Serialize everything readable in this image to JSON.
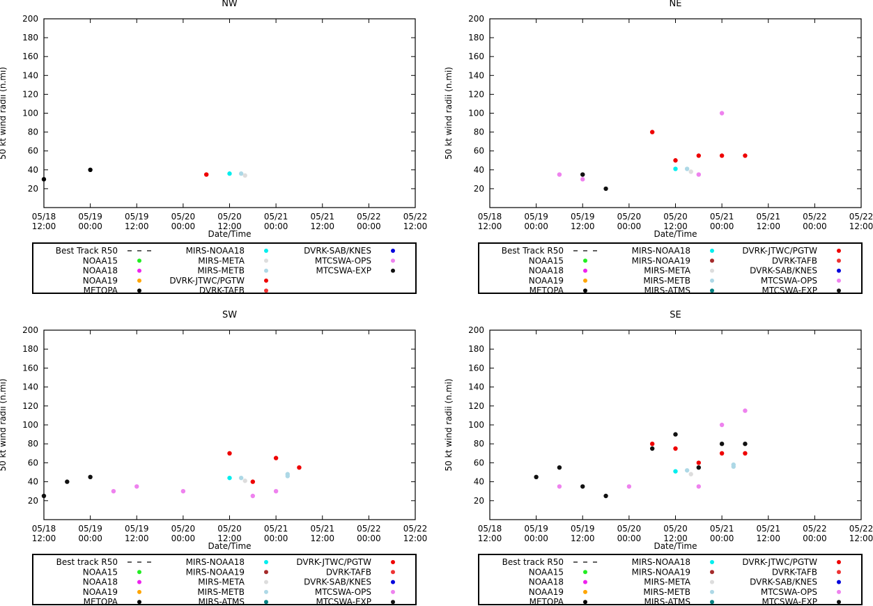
{
  "x_ticks": [
    {
      "t": 0,
      "line1": "05/18",
      "line2": "12:00"
    },
    {
      "t": 12,
      "line1": "05/19",
      "line2": "00:00"
    },
    {
      "t": 24,
      "line1": "05/19",
      "line2": "12:00"
    },
    {
      "t": 36,
      "line1": "05/20",
      "line2": "00:00"
    },
    {
      "t": 48,
      "line1": "05/20",
      "line2": "12:00"
    },
    {
      "t": 60,
      "line1": "05/21",
      "line2": "00:00"
    },
    {
      "t": 72,
      "line1": "05/21",
      "line2": "12:00"
    },
    {
      "t": 84,
      "line1": "05/22",
      "line2": "00:00"
    },
    {
      "t": 96,
      "line1": "05/22",
      "line2": "12:00"
    }
  ],
  "chart_data": [
    {
      "type": "scatter",
      "title": "NW",
      "xlabel": "Date/Time",
      "ylabel": "50 kt wind radii (n.mi)",
      "xlim_hours_from_0518_1200": [
        0,
        96
      ],
      "ylim": [
        0,
        200
      ],
      "y_ticks": [
        20,
        40,
        60,
        80,
        100,
        120,
        140,
        160,
        180,
        200
      ],
      "legend": [
        {
          "label": "Best Track R50",
          "color": "#000000",
          "kind": "dash"
        },
        {
          "label": "NOAA15",
          "color": "#22ee22",
          "kind": "dot"
        },
        {
          "label": "NOAA18",
          "color": "#ee22ee",
          "kind": "dot"
        },
        {
          "label": "NOAA19",
          "color": "#ffa500",
          "kind": "dot"
        },
        {
          "label": "METOPA",
          "color": "#000000",
          "kind": "dot"
        },
        {
          "label": "MIRS-NOAA18",
          "color": "#00eeee",
          "kind": "dot"
        },
        {
          "label": "MIRS-META",
          "color": "#dddddd",
          "kind": "dot"
        },
        {
          "label": "MIRS-METB",
          "color": "#add8e6",
          "kind": "dot"
        },
        {
          "label": "DVRK-JTWC/PGTW",
          "color": "#ee0000",
          "kind": "dot"
        },
        {
          "label": "DVRK-TAFB",
          "color": "#ee3333",
          "kind": "dot"
        },
        {
          "label": "DVRK-SAB/KNES",
          "color": "#0000dd",
          "kind": "dot"
        },
        {
          "label": "MTCSWA-OPS",
          "color": "#ee82ee",
          "kind": "dot"
        },
        {
          "label": "MTCSWA-EXP",
          "color": "#111111",
          "kind": "dot"
        }
      ],
      "series": [
        {
          "name": "METOPA",
          "color": "#000000",
          "points": [
            [
              0,
              30
            ],
            [
              12,
              40
            ]
          ]
        },
        {
          "name": "DVRK-JTWC/PGTW",
          "color": "#ee0000",
          "points": [
            [
              42,
              35
            ]
          ]
        },
        {
          "name": "MIRS-NOAA18",
          "color": "#00eeee",
          "points": [
            [
              48,
              36
            ]
          ]
        },
        {
          "name": "MIRS-METB",
          "color": "#add8e6",
          "points": [
            [
              51,
              36
            ]
          ]
        },
        {
          "name": "MIRS-META",
          "color": "#dddddd",
          "points": [
            [
              52,
              34
            ]
          ]
        }
      ]
    },
    {
      "type": "scatter",
      "title": "NE",
      "xlabel": "Date/Time",
      "ylabel": "50 kt wind radii (n.mi)",
      "xlim_hours_from_0518_1200": [
        0,
        96
      ],
      "ylim": [
        0,
        200
      ],
      "y_ticks": [
        20,
        40,
        60,
        80,
        100,
        120,
        140,
        160,
        180,
        200
      ],
      "legend": [
        {
          "label": "Best Track R50",
          "color": "#000000",
          "kind": "dash"
        },
        {
          "label": "NOAA15",
          "color": "#22ee22",
          "kind": "dot"
        },
        {
          "label": "NOAA18",
          "color": "#ee22ee",
          "kind": "dot"
        },
        {
          "label": "NOAA19",
          "color": "#ffa500",
          "kind": "dot"
        },
        {
          "label": "METOPA",
          "color": "#000000",
          "kind": "dot"
        },
        {
          "label": "MIRS-NOAA18",
          "color": "#00eeee",
          "kind": "dot"
        },
        {
          "label": "MIRS-NOAA19",
          "color": "#a52a2a",
          "kind": "dot"
        },
        {
          "label": "MIRS-META",
          "color": "#dddddd",
          "kind": "dot"
        },
        {
          "label": "MIRS-METB",
          "color": "#add8e6",
          "kind": "dot"
        },
        {
          "label": "MIRS-ATMS",
          "color": "#008080",
          "kind": "dot"
        },
        {
          "label": "DVRK-JTWC/PGTW",
          "color": "#ee0000",
          "kind": "dot"
        },
        {
          "label": "DVRK-TAFB",
          "color": "#ee3333",
          "kind": "dot"
        },
        {
          "label": "DVRK-SAB/KNES",
          "color": "#0000dd",
          "kind": "dot"
        },
        {
          "label": "MTCSWA-OPS",
          "color": "#ee82ee",
          "kind": "dot"
        },
        {
          "label": "MTCSWA-EXP",
          "color": "#111111",
          "kind": "dot"
        }
      ],
      "series": [
        {
          "name": "MTCSWA-OPS",
          "color": "#ee82ee",
          "points": [
            [
              18,
              35
            ],
            [
              24,
              30
            ],
            [
              54,
              35
            ],
            [
              60,
              100
            ]
          ]
        },
        {
          "name": "MTCSWA-EXP",
          "color": "#111111",
          "points": [
            [
              24,
              35
            ],
            [
              30,
              20
            ]
          ]
        },
        {
          "name": "DVRK-JTWC/PGTW",
          "color": "#ee0000",
          "points": [
            [
              42,
              80
            ],
            [
              48,
              50
            ],
            [
              54,
              55
            ],
            [
              60,
              55
            ],
            [
              66,
              55
            ]
          ]
        },
        {
          "name": "MIRS-NOAA18",
          "color": "#00eeee",
          "points": [
            [
              48,
              41
            ]
          ]
        },
        {
          "name": "MIRS-METB",
          "color": "#add8e6",
          "points": [
            [
              51,
              41
            ]
          ]
        },
        {
          "name": "MIRS-META",
          "color": "#dddddd",
          "points": [
            [
              52,
              38
            ]
          ]
        }
      ]
    },
    {
      "type": "scatter",
      "title": "SW",
      "xlabel": "Date/Time",
      "ylabel": "50 kt wind radii (n.mi)",
      "xlim_hours_from_0518_1200": [
        0,
        96
      ],
      "ylim": [
        0,
        200
      ],
      "y_ticks": [
        20,
        40,
        60,
        80,
        100,
        120,
        140,
        160,
        180,
        200
      ],
      "legend": [
        {
          "label": "Best track R50",
          "color": "#000000",
          "kind": "dash"
        },
        {
          "label": "NOAA15",
          "color": "#22ee22",
          "kind": "dot"
        },
        {
          "label": "NOAA18",
          "color": "#ee22ee",
          "kind": "dot"
        },
        {
          "label": "NOAA19",
          "color": "#ffa500",
          "kind": "dot"
        },
        {
          "label": "METOPA",
          "color": "#000000",
          "kind": "dot"
        },
        {
          "label": "MIRS-NOAA18",
          "color": "#00eeee",
          "kind": "dot"
        },
        {
          "label": "MIRS-NOAA19",
          "color": "#a52a2a",
          "kind": "dot"
        },
        {
          "label": "MIRS-META",
          "color": "#dddddd",
          "kind": "dot"
        },
        {
          "label": "MIRS-METB",
          "color": "#add8e6",
          "kind": "dot"
        },
        {
          "label": "MIRS-ATMS",
          "color": "#008080",
          "kind": "dot"
        },
        {
          "label": "DVRK-JTWC/PGTW",
          "color": "#ee0000",
          "kind": "dot"
        },
        {
          "label": "DVRK-TAFB",
          "color": "#ee3333",
          "kind": "dot"
        },
        {
          "label": "DVRK-SAB/KNES",
          "color": "#0000dd",
          "kind": "dot"
        },
        {
          "label": "MTCSWA-OPS",
          "color": "#ee82ee",
          "kind": "dot"
        },
        {
          "label": "MTCSWA-EXP",
          "color": "#111111",
          "kind": "dot"
        }
      ],
      "series": [
        {
          "name": "MTCSWA-EXP",
          "color": "#111111",
          "points": [
            [
              0,
              25
            ],
            [
              6,
              40
            ],
            [
              12,
              45
            ]
          ]
        },
        {
          "name": "MTCSWA-OPS",
          "color": "#ee82ee",
          "points": [
            [
              18,
              30
            ],
            [
              24,
              35
            ],
            [
              36,
              30
            ],
            [
              54,
              25
            ],
            [
              60,
              30
            ]
          ]
        },
        {
          "name": "DVRK-JTWC/PGTW",
          "color": "#ee0000",
          "points": [
            [
              48,
              70
            ],
            [
              54,
              40
            ],
            [
              60,
              65
            ],
            [
              66,
              55
            ]
          ]
        },
        {
          "name": "MIRS-NOAA18",
          "color": "#00eeee",
          "points": [
            [
              48,
              44
            ]
          ]
        },
        {
          "name": "MIRS-METB",
          "color": "#add8e6",
          "points": [
            [
              51,
              44
            ],
            [
              63,
              48
            ],
            [
              63,
              46
            ]
          ]
        },
        {
          "name": "MIRS-META",
          "color": "#dddddd",
          "points": [
            [
              52,
              41
            ]
          ]
        }
      ]
    },
    {
      "type": "scatter",
      "title": "SE",
      "xlabel": "Date/Time",
      "ylabel": "50 kt wind radii (n.mi)",
      "xlim_hours_from_0518_1200": [
        0,
        96
      ],
      "ylim": [
        0,
        200
      ],
      "y_ticks": [
        20,
        40,
        60,
        80,
        100,
        120,
        140,
        160,
        180,
        200
      ],
      "legend": [
        {
          "label": "Best track R50",
          "color": "#000000",
          "kind": "dash"
        },
        {
          "label": "NOAA15",
          "color": "#22ee22",
          "kind": "dot"
        },
        {
          "label": "NOAA18",
          "color": "#ee22ee",
          "kind": "dot"
        },
        {
          "label": "NOAA19",
          "color": "#ffa500",
          "kind": "dot"
        },
        {
          "label": "METOPA",
          "color": "#000000",
          "kind": "dot"
        },
        {
          "label": "MIRS-NOAA18",
          "color": "#00eeee",
          "kind": "dot"
        },
        {
          "label": "MIRS-NOAA19",
          "color": "#a52a2a",
          "kind": "dot"
        },
        {
          "label": "MIRS-META",
          "color": "#dddddd",
          "kind": "dot"
        },
        {
          "label": "MIRS-METB",
          "color": "#add8e6",
          "kind": "dot"
        },
        {
          "label": "MIRS-ATMS",
          "color": "#008080",
          "kind": "dot"
        },
        {
          "label": "DVRK-JTWC/PGTW",
          "color": "#ee0000",
          "kind": "dot"
        },
        {
          "label": "DVRK-TAFB",
          "color": "#ee3333",
          "kind": "dot"
        },
        {
          "label": "DVRK-SAB/KNES",
          "color": "#0000dd",
          "kind": "dot"
        },
        {
          "label": "MTCSWA-OPS",
          "color": "#ee82ee",
          "kind": "dot"
        },
        {
          "label": "MTCSWA-EXP",
          "color": "#111111",
          "kind": "dot"
        }
      ],
      "series": [
        {
          "name": "MTCSWA-EXP",
          "color": "#111111",
          "points": [
            [
              12,
              45
            ],
            [
              18,
              55
            ],
            [
              24,
              35
            ],
            [
              30,
              25
            ],
            [
              42,
              75
            ],
            [
              48,
              90
            ],
            [
              54,
              55
            ],
            [
              60,
              80
            ],
            [
              66,
              80
            ]
          ]
        },
        {
          "name": "MTCSWA-OPS",
          "color": "#ee82ee",
          "points": [
            [
              18,
              35
            ],
            [
              36,
              35
            ],
            [
              54,
              35
            ],
            [
              60,
              100
            ],
            [
              66,
              115
            ]
          ]
        },
        {
          "name": "DVRK-JTWC/PGTW",
          "color": "#ee0000",
          "points": [
            [
              42,
              80
            ],
            [
              48,
              75
            ],
            [
              54,
              60
            ],
            [
              60,
              70
            ],
            [
              66,
              70
            ]
          ]
        },
        {
          "name": "MIRS-NOAA18",
          "color": "#00eeee",
          "points": [
            [
              48,
              51
            ]
          ]
        },
        {
          "name": "MIRS-METB",
          "color": "#add8e6",
          "points": [
            [
              51,
              52
            ],
            [
              63,
              58
            ],
            [
              63,
              56
            ]
          ]
        },
        {
          "name": "MIRS-META",
          "color": "#dddddd",
          "points": [
            [
              52,
              48
            ]
          ]
        }
      ]
    }
  ]
}
